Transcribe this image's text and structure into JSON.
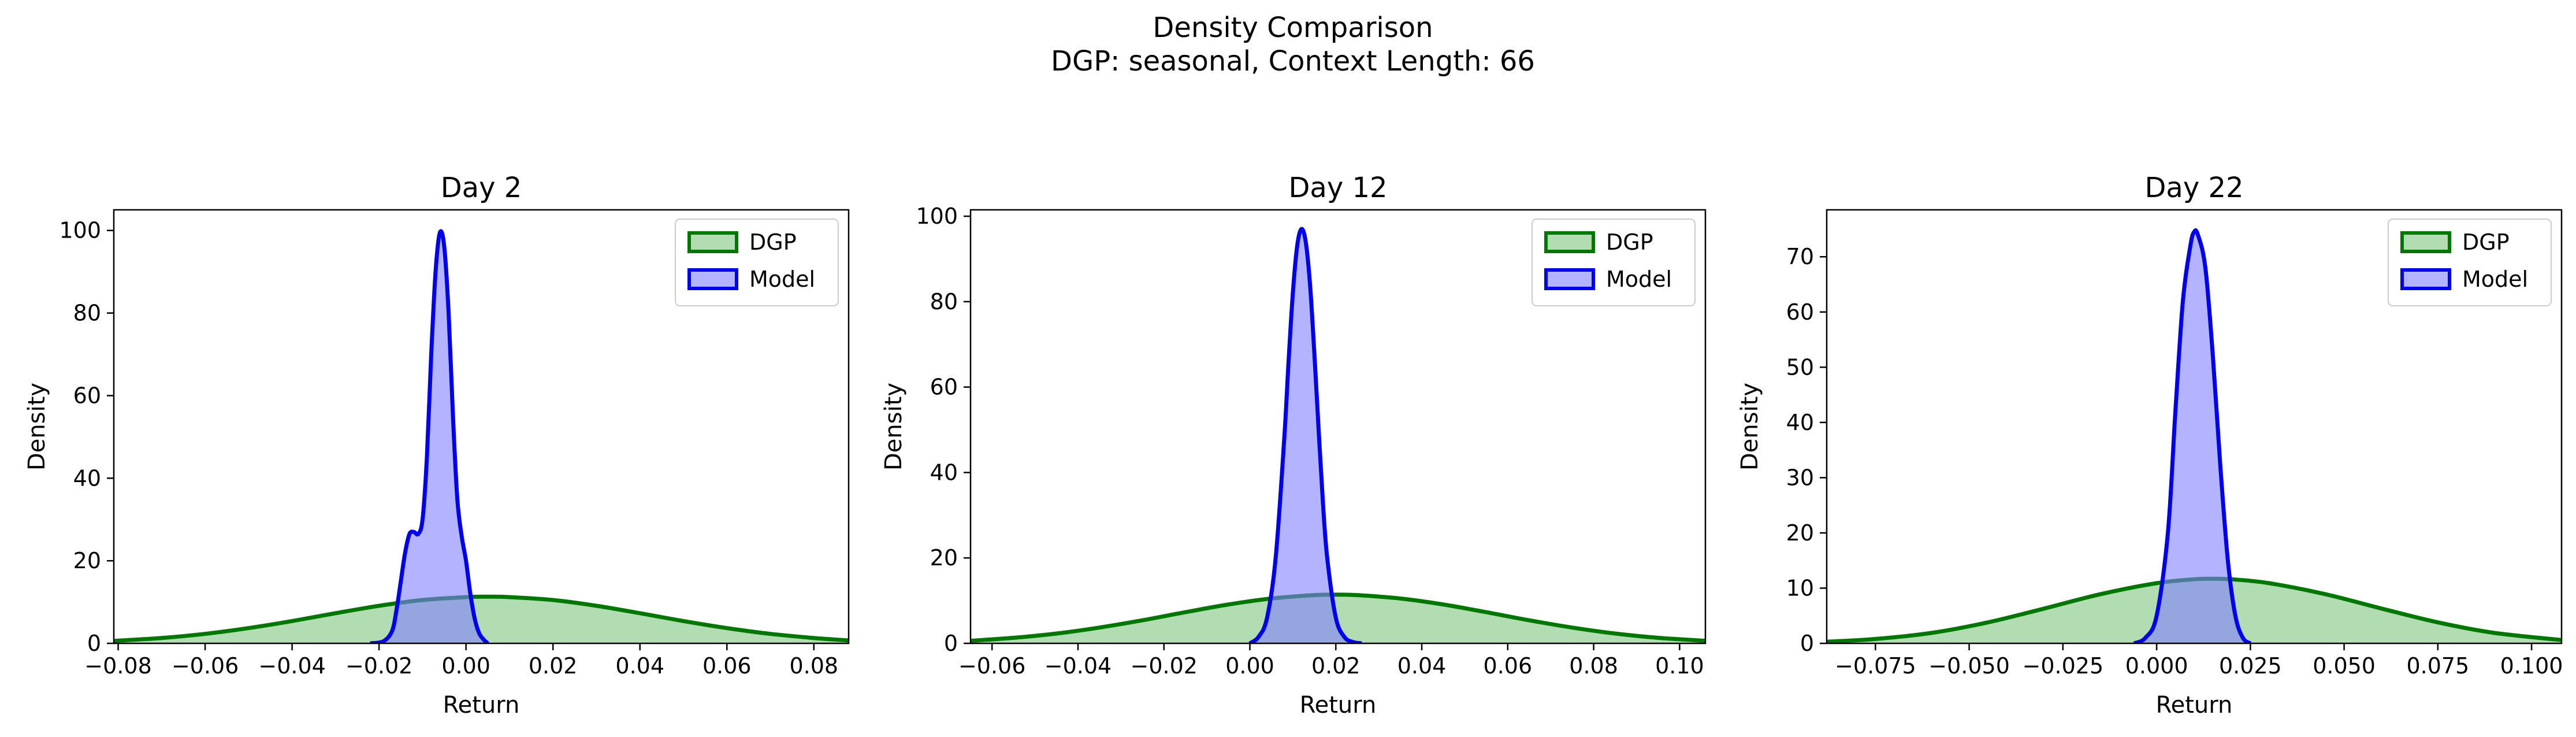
{
  "figure": {
    "title": "Density Comparison",
    "subtitle": "DGP: seasonal, Context Length: 66"
  },
  "colors": {
    "dgp_line": "#007700",
    "dgp_fill": "#7fc47f",
    "model_line": "#0000ee",
    "model_fill": "#8080ff",
    "axes": "#000000",
    "background": "#ffffff"
  },
  "chart_data": [
    {
      "type": "area",
      "title": "Day 2",
      "xlabel": "Return",
      "ylabel": "Density",
      "xlim": [
        -0.081,
        0.088
      ],
      "ylim": [
        0,
        105
      ],
      "xticks": [
        -0.08,
        -0.06,
        -0.04,
        -0.02,
        0.0,
        0.02,
        0.04,
        0.06,
        0.08
      ],
      "xtick_labels": [
        "−0.08",
        "−0.06",
        "−0.04",
        "−0.02",
        "0.00",
        "0.02",
        "0.04",
        "0.06",
        "0.08"
      ],
      "yticks": [
        0,
        20,
        40,
        60,
        80,
        100
      ],
      "ytick_labels": [
        "0",
        "20",
        "40",
        "60",
        "80",
        "100"
      ],
      "grid": false,
      "legend": "top-right",
      "series": [
        {
          "name": "DGP",
          "x": [
            -0.081,
            -0.07,
            -0.06,
            -0.05,
            -0.04,
            -0.03,
            -0.02,
            -0.01,
            0.0,
            0.005,
            0.01,
            0.02,
            0.03,
            0.04,
            0.05,
            0.06,
            0.07,
            0.08,
            0.088
          ],
          "y": [
            0.6,
            1.3,
            2.3,
            3.7,
            5.4,
            7.3,
            9.1,
            10.5,
            11.2,
            11.3,
            11.2,
            10.5,
            9.1,
            7.3,
            5.4,
            3.7,
            2.3,
            1.3,
            0.7
          ]
        },
        {
          "name": "Model",
          "x": [
            -0.022,
            -0.019,
            -0.017,
            -0.016,
            -0.015,
            -0.014,
            -0.013,
            -0.012,
            -0.011,
            -0.01,
            -0.009,
            -0.008,
            -0.007,
            -0.006,
            -0.005,
            -0.004,
            -0.003,
            -0.002,
            -0.001,
            0.0,
            0.001,
            0.002,
            0.003,
            0.004,
            0.005
          ],
          "y": [
            0,
            0.5,
            3,
            8,
            15,
            22,
            26.5,
            27,
            26.5,
            30,
            45,
            70,
            90,
            99.5,
            96,
            80,
            55,
            35,
            26,
            20,
            12,
            6,
            2.5,
            1,
            0
          ]
        }
      ]
    },
    {
      "type": "area",
      "title": "Day 12",
      "xlabel": "Return",
      "ylabel": "Density",
      "xlim": [
        -0.065,
        0.106
      ],
      "ylim": [
        0,
        101.5
      ],
      "xticks": [
        -0.06,
        -0.04,
        -0.02,
        0.0,
        0.02,
        0.04,
        0.06,
        0.08,
        0.1
      ],
      "xtick_labels": [
        "−0.06",
        "−0.04",
        "−0.02",
        "0.00",
        "0.02",
        "0.04",
        "0.06",
        "0.08",
        "0.10"
      ],
      "yticks": [
        0,
        20,
        40,
        60,
        80,
        100
      ],
      "ytick_labels": [
        "0",
        "20",
        "40",
        "60",
        "80",
        "100"
      ],
      "grid": false,
      "legend": "top-right",
      "series": [
        {
          "name": "DGP",
          "x": [
            -0.065,
            -0.055,
            -0.045,
            -0.035,
            -0.025,
            -0.015,
            -0.005,
            0.005,
            0.015,
            0.02,
            0.025,
            0.035,
            0.045,
            0.055,
            0.065,
            0.075,
            0.085,
            0.095,
            0.106
          ],
          "y": [
            0.6,
            1.3,
            2.3,
            3.7,
            5.4,
            7.3,
            9.1,
            10.5,
            11.3,
            11.4,
            11.3,
            10.5,
            9.1,
            7.3,
            5.4,
            3.7,
            2.3,
            1.3,
            0.6
          ]
        },
        {
          "name": "Model",
          "x": [
            0.0,
            0.002,
            0.004,
            0.006,
            0.008,
            0.009,
            0.01,
            0.011,
            0.012,
            0.013,
            0.014,
            0.015,
            0.016,
            0.017,
            0.018,
            0.02,
            0.022,
            0.024,
            0.026
          ],
          "y": [
            0,
            1.5,
            6,
            20,
            48,
            66,
            82,
            93,
            97,
            94,
            84,
            68,
            50,
            33,
            20,
            6,
            1.5,
            0.3,
            0
          ]
        }
      ]
    },
    {
      "type": "area",
      "title": "Day 22",
      "xlabel": "Return",
      "ylabel": "Density",
      "xlim": [
        -0.088,
        0.108
      ],
      "ylim": [
        0,
        78.5
      ],
      "xticks": [
        -0.075,
        -0.05,
        -0.025,
        0.0,
        0.025,
        0.05,
        0.075,
        0.1
      ],
      "xtick_labels": [
        "−0.075",
        "−0.050",
        "−0.025",
        "0.000",
        "0.025",
        "0.050",
        "0.075",
        "0.100"
      ],
      "yticks": [
        0,
        10,
        20,
        30,
        40,
        50,
        60,
        70
      ],
      "ytick_labels": [
        "0",
        "10",
        "20",
        "30",
        "40",
        "50",
        "60",
        "70"
      ],
      "grid": false,
      "legend": "top-right",
      "series": [
        {
          "name": "DGP",
          "x": [
            -0.088,
            -0.075,
            -0.06,
            -0.045,
            -0.03,
            -0.015,
            0.0,
            0.01,
            0.015,
            0.02,
            0.03,
            0.045,
            0.06,
            0.075,
            0.09,
            0.108
          ],
          "y": [
            0.3,
            0.8,
            1.9,
            3.8,
            6.3,
            8.9,
            10.9,
            11.6,
            11.7,
            11.6,
            10.9,
            8.9,
            6.3,
            3.8,
            1.9,
            0.6
          ]
        },
        {
          "name": "Model",
          "x": [
            -0.006,
            -0.003,
            0.0,
            0.003,
            0.005,
            0.007,
            0.009,
            0.01,
            0.011,
            0.013,
            0.015,
            0.017,
            0.019,
            0.021,
            0.023,
            0.025
          ],
          "y": [
            0,
            1,
            5,
            20,
            42,
            62,
            72,
            74.5,
            74,
            68,
            52,
            32,
            15,
            5,
            1,
            0
          ]
        }
      ]
    }
  ]
}
